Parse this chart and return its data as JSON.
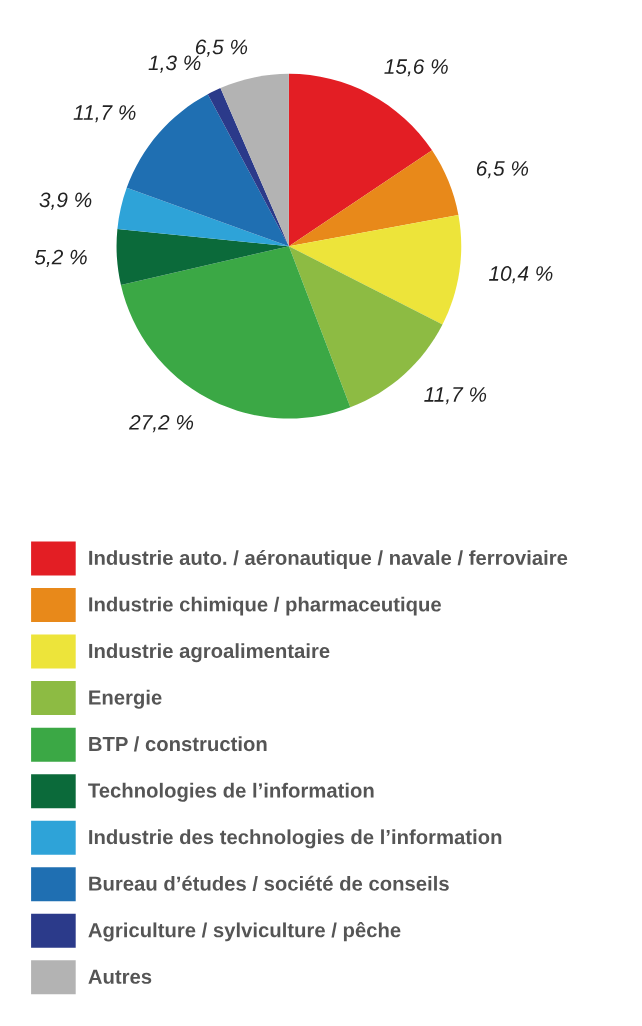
{
  "chart_data": {
    "type": "pie",
    "categories": [
      "Industrie auto. / aéronautique / navale / ferroviaire",
      "Industrie chimique / pharmaceutique",
      "Industrie agroalimentaire",
      "Energie",
      "BTP / construction",
      "Technologies de l’information",
      "Industrie des technologies de l’information",
      "Bureau d’études / société de conseils",
      "Agriculture / sylviculture / pêche",
      "Autres"
    ],
    "values": [
      15.6,
      6.5,
      10.4,
      11.7,
      27.2,
      5.2,
      3.9,
      11.7,
      1.3,
      6.5
    ],
    "value_labels": [
      "15,6 %",
      "6,5 %",
      "10,4 %",
      "11,7 %",
      "27,2 %",
      "5,2 %",
      "3,9 %",
      "11,7 %",
      "1,3 %",
      "6,5 %"
    ],
    "colors": [
      "#e31e24",
      "#e8891a",
      "#ede43a",
      "#8dbb43",
      "#3ba845",
      "#0b6a3a",
      "#2ea3d8",
      "#1f6fb2",
      "#2b3a8a",
      "#b3b3b3"
    ],
    "legend": "bottom"
  }
}
